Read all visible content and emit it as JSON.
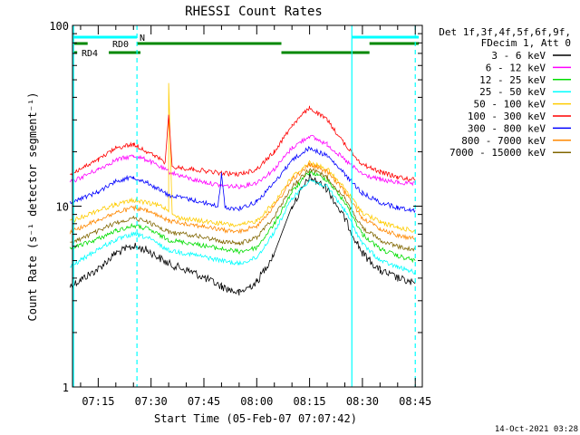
{
  "chart_data": {
    "type": "line",
    "title": "RHESSI Count Rates",
    "xlabel": "Start Time (05-Feb-07 07:07:42)",
    "ylabel": "Count Rate (s⁻¹ detector segment⁻¹)",
    "yscale": "log",
    "ylim": [
      1,
      100
    ],
    "xlim": [
      "07:07:42",
      "08:47:00"
    ],
    "x_ticks": [
      "07:15",
      "07:30",
      "07:45",
      "08:00",
      "08:15",
      "08:30",
      "08:45"
    ],
    "y_ticks": [
      "1",
      "10",
      "100"
    ],
    "grid": false,
    "legend_position": "right-top",
    "legend_header": [
      "Det 1f,3f,4f,5f,6f,9f,",
      "FDecim 1, Att 0"
    ],
    "timestamp": "14-Oct-2021 03:28",
    "series": [
      {
        "name": "3 - 6 keV",
        "color": "#000000",
        "x": [
          "07:07",
          "07:15",
          "07:20",
          "07:25",
          "07:29",
          "07:35",
          "07:42",
          "07:50",
          "07:55",
          "08:00",
          "08:05",
          "08:10",
          "08:15",
          "08:20",
          "08:25",
          "08:30",
          "08:35",
          "08:40",
          "08:45"
        ],
        "y": [
          3.6,
          4.5,
          5.5,
          6.0,
          5.7,
          4.8,
          4.3,
          3.6,
          3.3,
          3.8,
          5.5,
          10.0,
          14.5,
          12.5,
          8.5,
          5.5,
          4.4,
          4.0,
          3.7
        ]
      },
      {
        "name": "6 - 12 keV",
        "color": "#ff00ff",
        "x": [
          "07:07",
          "07:15",
          "07:20",
          "07:25",
          "07:29",
          "07:35",
          "07:42",
          "07:50",
          "07:55",
          "08:00",
          "08:05",
          "08:10",
          "08:15",
          "08:20",
          "08:25",
          "08:30",
          "08:35",
          "08:40",
          "08:45"
        ],
        "y": [
          13.5,
          16.0,
          18.0,
          19.0,
          18.0,
          15.5,
          14.0,
          13.0,
          12.8,
          13.5,
          16.0,
          21.0,
          24.5,
          22.0,
          18.0,
          15.0,
          14.0,
          13.5,
          13.2
        ]
      },
      {
        "name": "12 - 25 keV",
        "color": "#00dd00",
        "x": [
          "07:07",
          "07:15",
          "07:20",
          "07:25",
          "07:29",
          "07:35",
          "07:42",
          "07:50",
          "07:55",
          "08:00",
          "08:05",
          "08:10",
          "08:15",
          "08:20",
          "08:25",
          "08:30",
          "08:35",
          "08:40",
          "08:45"
        ],
        "y": [
          5.8,
          6.6,
          7.3,
          7.8,
          7.5,
          6.5,
          6.2,
          5.8,
          5.6,
          5.9,
          8.0,
          12.0,
          15.5,
          14.0,
          10.5,
          7.0,
          5.8,
          5.3,
          5.0
        ]
      },
      {
        "name": "25 - 50 keV",
        "color": "#00ffff",
        "x": [
          "07:07",
          "07:15",
          "07:20",
          "07:25",
          "07:29",
          "07:35",
          "07:42",
          "07:50",
          "07:55",
          "08:00",
          "08:05",
          "08:10",
          "08:15",
          "08:20",
          "08:25",
          "08:30",
          "08:35",
          "08:40",
          "08:45"
        ],
        "y": [
          4.6,
          5.8,
          6.5,
          7.0,
          6.7,
          5.7,
          5.4,
          5.0,
          4.8,
          5.2,
          7.2,
          11.0,
          14.0,
          12.8,
          9.5,
          6.2,
          5.0,
          4.6,
          4.3
        ]
      },
      {
        "name": "50 - 100 keV",
        "color": "#ffcc00",
        "x": [
          "07:07",
          "07:15",
          "07:20",
          "07:25",
          "07:29",
          "07:33",
          "07:35",
          "07:35",
          "07:36",
          "07:38",
          "07:42",
          "07:50",
          "07:55",
          "08:00",
          "08:05",
          "08:10",
          "08:15",
          "08:20",
          "08:25",
          "08:30",
          "08:35",
          "08:40",
          "08:45"
        ],
        "y": [
          8.2,
          9.5,
          10.2,
          10.8,
          10.4,
          10.0,
          9.5,
          48.0,
          9.0,
          8.6,
          8.4,
          8.0,
          7.8,
          8.3,
          10.5,
          14.5,
          17.5,
          16.0,
          12.5,
          9.2,
          8.2,
          7.6,
          7.3
        ]
      },
      {
        "name": "100 - 300 keV",
        "color": "#ff0000",
        "x": [
          "07:07",
          "07:15",
          "07:20",
          "07:25",
          "07:29",
          "07:34",
          "07:35",
          "07:36",
          "07:42",
          "07:50",
          "07:55",
          "08:00",
          "08:05",
          "08:10",
          "08:15",
          "08:20",
          "08:25",
          "08:30",
          "08:35",
          "08:40",
          "08:45"
        ],
        "y": [
          15.0,
          18.0,
          21.0,
          22.0,
          20.0,
          17.5,
          32.0,
          16.5,
          16.0,
          15.2,
          15.0,
          16.0,
          20.0,
          28.0,
          35.0,
          30.0,
          22.0,
          17.0,
          15.5,
          14.5,
          14.0
        ]
      },
      {
        "name": "300 - 800 keV",
        "color": "#0000ff",
        "x": [
          "07:07",
          "07:15",
          "07:20",
          "07:25",
          "07:29",
          "07:35",
          "07:42",
          "07:49",
          "07:50",
          "07:51",
          "07:55",
          "08:00",
          "08:05",
          "08:10",
          "08:15",
          "08:20",
          "08:25",
          "08:30",
          "08:35",
          "08:40",
          "08:45"
        ],
        "y": [
          10.5,
          12.0,
          13.8,
          14.5,
          13.5,
          11.5,
          10.8,
          10.0,
          15.0,
          9.8,
          9.7,
          10.6,
          13.5,
          18.0,
          21.0,
          19.0,
          15.0,
          11.8,
          10.5,
          9.8,
          9.5
        ]
      },
      {
        "name": "800 - 7000 keV",
        "color": "#ff8800",
        "x": [
          "07:07",
          "07:15",
          "07:20",
          "07:25",
          "07:29",
          "07:35",
          "07:42",
          "07:50",
          "07:55",
          "08:00",
          "08:05",
          "08:10",
          "08:15",
          "08:20",
          "08:25",
          "08:30",
          "08:35",
          "08:40",
          "08:45"
        ],
        "y": [
          7.2,
          8.4,
          9.2,
          9.8,
          9.4,
          8.3,
          7.9,
          7.4,
          7.2,
          7.8,
          10.0,
          14.0,
          17.0,
          15.5,
          12.0,
          8.6,
          7.5,
          6.9,
          6.6
        ]
      },
      {
        "name": "7000 - 15000 keV",
        "color": "#806600",
        "x": [
          "07:07",
          "07:15",
          "07:20",
          "07:25",
          "07:29",
          "07:35",
          "07:42",
          "07:50",
          "07:55",
          "08:00",
          "08:05",
          "08:10",
          "08:15",
          "08:20",
          "08:25",
          "08:30",
          "08:35",
          "08:40",
          "08:45"
        ],
        "y": [
          6.2,
          7.3,
          8.1,
          8.6,
          8.2,
          7.2,
          6.9,
          6.4,
          6.2,
          6.7,
          8.8,
          12.8,
          16.0,
          14.5,
          11.0,
          7.6,
          6.5,
          6.0,
          5.7
        ]
      }
    ],
    "vertical_markers": [
      {
        "x": "07:08",
        "color": "#00ffff",
        "style": "solid"
      },
      {
        "x": "07:26",
        "color": "#00ffff",
        "style": "dashed"
      },
      {
        "x": "08:27",
        "color": "#00ffff",
        "style": "solid"
      },
      {
        "x": "08:45",
        "color": "#00ffff",
        "style": "dashed"
      }
    ],
    "flag_bars": [
      {
        "label": "N",
        "color": "#00ffff",
        "segments": [
          [
            "07:08",
            "07:26"
          ],
          [
            "08:27",
            "08:46"
          ]
        ]
      },
      {
        "label": "RD0",
        "color": "#008800",
        "segments": [
          [
            "07:08",
            "07:12"
          ],
          [
            "07:26",
            "08:07"
          ],
          [
            "08:32",
            "08:46"
          ]
        ]
      },
      {
        "label": "RD4",
        "color": "#008800",
        "segments": [
          [
            "07:08",
            "07:08"
          ],
          [
            "07:18",
            "07:27"
          ],
          [
            "08:07",
            "08:32"
          ]
        ]
      }
    ]
  }
}
